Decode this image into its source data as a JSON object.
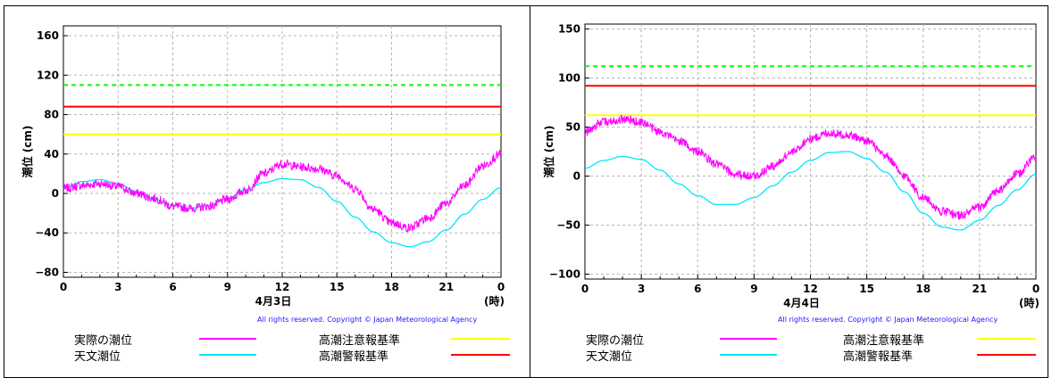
{
  "copyright": "All rights reserved. Copyright © Japan Meteorological Agency",
  "legend": {
    "observed": "実際の潮位",
    "astronomical": "天文潮位",
    "advisory": "高潮注意報基準",
    "warning": "高潮警報基準"
  },
  "colors": {
    "observed": "#ff00ff",
    "astronomical": "#00e5ff",
    "advisory": "#ffff00",
    "warning": "#ff0000",
    "warning_dashed": "#00ff00"
  },
  "chart_data": [
    {
      "type": "line",
      "ylabel": "潮位 (cm)",
      "xlabel": "4月3日",
      "x_unit": "(時)",
      "x_ticks": [
        "0",
        "3",
        "6",
        "9",
        "12",
        "15",
        "18",
        "21",
        "0"
      ],
      "y_ticks": [
        "160",
        "120",
        "80",
        "40",
        "0",
        "-40",
        "-80"
      ],
      "ylim": [
        -85,
        170
      ],
      "xlim": [
        0,
        24
      ],
      "grid": true,
      "thresholds": {
        "dashed": 110,
        "warning": 88,
        "advisory": 60
      },
      "series": [
        {
          "name": "天文潮位",
          "x": [
            0,
            1,
            2,
            3,
            4,
            5,
            6,
            7,
            8,
            9,
            10,
            11,
            12,
            13,
            14,
            15,
            16,
            17,
            18,
            19,
            20,
            21,
            22,
            23,
            24
          ],
          "values": [
            5,
            12,
            14,
            10,
            2,
            -6,
            -12,
            -15,
            -12,
            -5,
            4,
            11,
            15,
            14,
            6,
            -8,
            -24,
            -39,
            -50,
            -54,
            -49,
            -37,
            -21,
            -6,
            6
          ]
        },
        {
          "name": "実際の潮位",
          "x": [
            0,
            1,
            2,
            3,
            4,
            5,
            6,
            7,
            8,
            9,
            10,
            11,
            12,
            13,
            14,
            15,
            16,
            17,
            18,
            19,
            20,
            21,
            22,
            23,
            24
          ],
          "values": [
            5,
            8,
            10,
            7,
            0,
            -5,
            -13,
            -15,
            -13,
            -6,
            3,
            20,
            30,
            27,
            25,
            18,
            5,
            -16,
            -30,
            -35,
            -25,
            -10,
            8,
            28,
            40
          ]
        }
      ]
    },
    {
      "type": "line",
      "ylabel": "潮位 (cm)",
      "xlabel": "4月4日",
      "x_unit": "(時)",
      "x_ticks": [
        "0",
        "3",
        "6",
        "9",
        "12",
        "15",
        "18",
        "21",
        "0"
      ],
      "y_ticks": [
        "150",
        "100",
        "50",
        "0",
        "-50",
        "-100"
      ],
      "ylim": [
        -105,
        155
      ],
      "xlim": [
        0,
        24
      ],
      "grid": true,
      "thresholds": {
        "dashed": 112,
        "warning": 92,
        "advisory": 62
      },
      "series": [
        {
          "name": "天文潮位",
          "x": [
            0,
            1,
            2,
            3,
            4,
            5,
            6,
            7,
            8,
            9,
            10,
            11,
            12,
            13,
            14,
            15,
            16,
            17,
            18,
            19,
            20,
            21,
            22,
            23,
            24
          ],
          "values": [
            8,
            16,
            20,
            17,
            6,
            -8,
            -20,
            -29,
            -29,
            -22,
            -10,
            4,
            16,
            24,
            25,
            18,
            4,
            -16,
            -38,
            -52,
            -55,
            -45,
            -30,
            -14,
            2
          ]
        },
        {
          "name": "実際の潮位",
          "x": [
            0,
            1,
            2,
            3,
            4,
            5,
            6,
            7,
            8,
            9,
            10,
            11,
            12,
            13,
            14,
            15,
            16,
            17,
            18,
            19,
            20,
            21,
            22,
            23,
            24
          ],
          "values": [
            45,
            55,
            58,
            55,
            45,
            36,
            25,
            12,
            2,
            0,
            10,
            24,
            38,
            44,
            42,
            36,
            20,
            0,
            -22,
            -36,
            -40,
            -32,
            -15,
            2,
            20
          ]
        }
      ]
    }
  ]
}
